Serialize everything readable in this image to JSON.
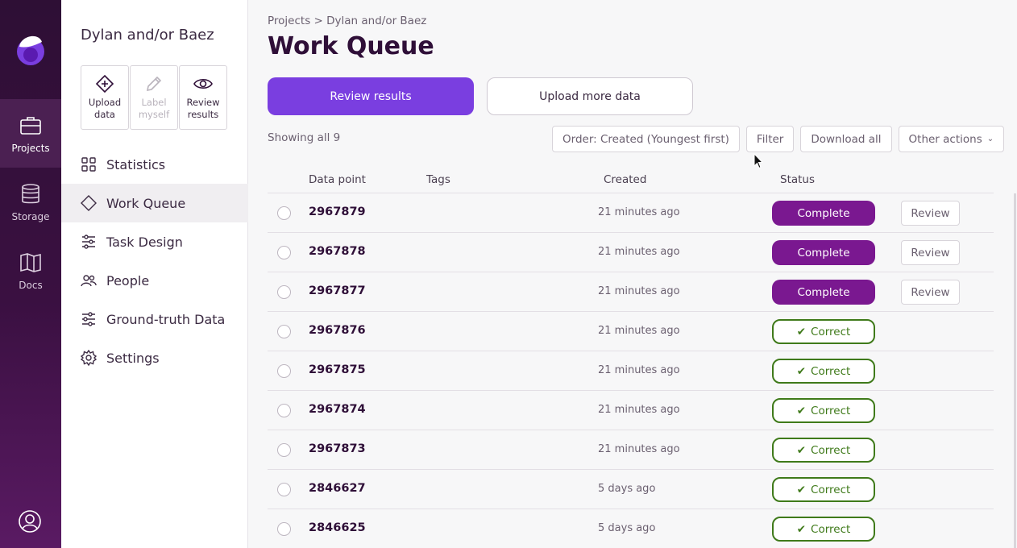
{
  "rail": {
    "items": [
      {
        "label": "Projects",
        "icon": "briefcase-icon",
        "active": true
      },
      {
        "label": "Storage",
        "icon": "database-icon",
        "active": false
      },
      {
        "label": "Docs",
        "icon": "book-icon",
        "active": false
      }
    ]
  },
  "sidebar": {
    "project_name": "Dylan and/or Baez",
    "tools": [
      {
        "label": "Upload data",
        "icon": "plus-diamond-icon",
        "disabled": false
      },
      {
        "label": "Label myself",
        "icon": "pencil-icon",
        "disabled": true
      },
      {
        "label": "Review results",
        "icon": "eye-icon",
        "disabled": false
      }
    ],
    "nav": [
      {
        "label": "Statistics",
        "icon": "grid-icon"
      },
      {
        "label": "Work Queue",
        "icon": "diamond-icon",
        "active": true
      },
      {
        "label": "Task Design",
        "icon": "sliders-icon"
      },
      {
        "label": "People",
        "icon": "people-icon"
      },
      {
        "label": "Ground-truth Data",
        "icon": "sliders-icon"
      },
      {
        "label": "Settings",
        "icon": "gear-icon"
      }
    ]
  },
  "main": {
    "breadcrumb": "Projects > Dylan and/or Baez",
    "title": "Work Queue",
    "review_results_label": "Review results",
    "upload_more_label": "Upload more data",
    "showing": "Showing all 9",
    "actions": {
      "order": "Order: Created (Youngest first)",
      "filter": "Filter",
      "download": "Download all",
      "other": "Other actions"
    },
    "columns": {
      "data_point": "Data point",
      "tags": "Tags",
      "created": "Created",
      "status": "Status"
    },
    "rows": [
      {
        "id": "2967879",
        "created": "21 minutes ago",
        "status": "Complete",
        "review": "Review"
      },
      {
        "id": "2967878",
        "created": "21 minutes ago",
        "status": "Complete",
        "review": "Review"
      },
      {
        "id": "2967877",
        "created": "21 minutes ago",
        "status": "Complete",
        "review": "Review"
      },
      {
        "id": "2967876",
        "created": "21 minutes ago",
        "status": "Correct"
      },
      {
        "id": "2967875",
        "created": "21 minutes ago",
        "status": "Correct"
      },
      {
        "id": "2967874",
        "created": "21 minutes ago",
        "status": "Correct"
      },
      {
        "id": "2967873",
        "created": "21 minutes ago",
        "status": "Correct"
      },
      {
        "id": "2846627",
        "created": "5 days ago",
        "status": "Correct"
      },
      {
        "id": "2846625",
        "created": "5 days ago",
        "status": "Correct"
      }
    ]
  },
  "colors": {
    "accent": "#7a3ee0",
    "complete": "#7a1890",
    "correct": "#3f7a1a",
    "rail": "#2e0f35"
  }
}
